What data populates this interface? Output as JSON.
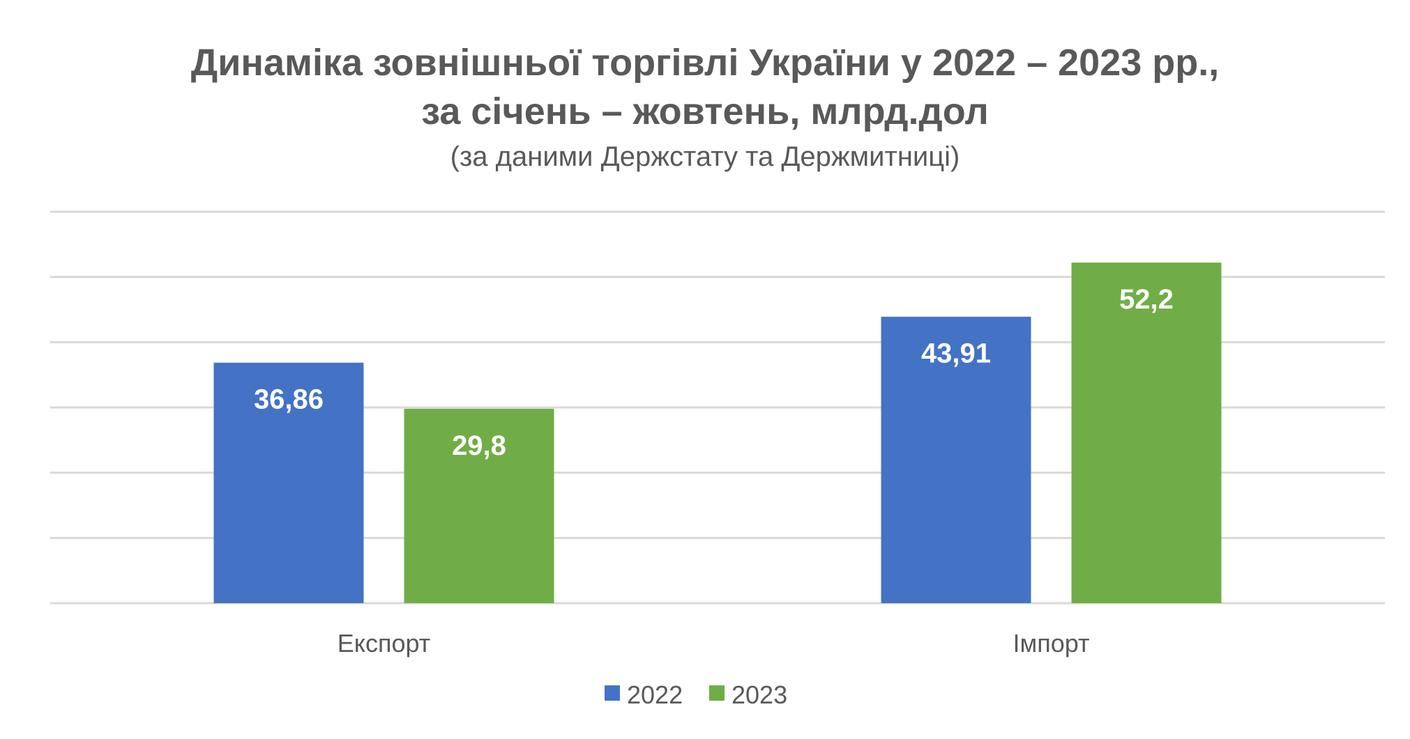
{
  "chart_data": {
    "type": "bar",
    "title_lines": [
      "Динаміка зовнішньої торгівлі України у 2022 – 2023 рр.,",
      "за січень – жовтень, млрд.дол"
    ],
    "subtitle": "(за даними Держстату та Держмитниці)",
    "categories": [
      "Експорт",
      "Імпорт"
    ],
    "series": [
      {
        "name": "2022",
        "color": "#4472c4",
        "values": [
          36.86,
          43.91
        ]
      },
      {
        "name": "2023",
        "color": "#70ad47",
        "values": [
          29.8,
          52.2
        ]
      }
    ],
    "data_labels": [
      [
        "36,86",
        "43,91"
      ],
      [
        "29,8",
        "52,2"
      ]
    ],
    "ylim": [
      0,
      60
    ],
    "y_gridlines": [
      0,
      10,
      20,
      30,
      40,
      50,
      60
    ],
    "y_tick_labels_visible": false,
    "grid": true,
    "legend_position": "bottom"
  }
}
